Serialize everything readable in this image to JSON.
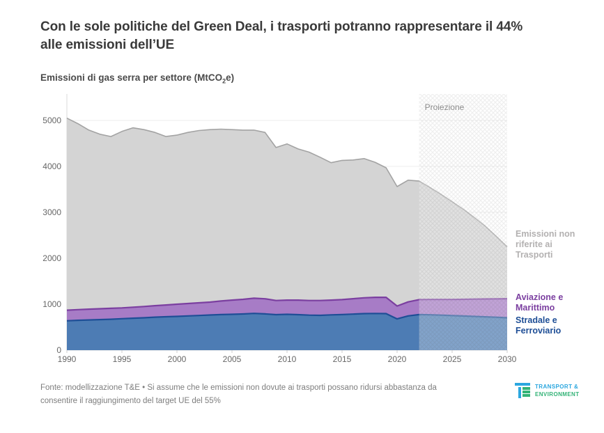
{
  "header": {
    "title_line1": "Con le sole politiche del Green Deal, i trasporti potranno rappresentare il 44%",
    "title_line2": "alle emissioni dell’UE",
    "subtitle_prefix": "Emissioni di gas serra per settore (MtCO",
    "subtitle_sub": "2",
    "subtitle_suffix": "e)"
  },
  "chart_data": {
    "type": "area",
    "stacked": true,
    "grid": true,
    "legend_position": "right",
    "xlim": [
      1990,
      2030
    ],
    "ylim": [
      0,
      5576
    ],
    "years": [
      1990,
      1991,
      1992,
      1993,
      1994,
      1995,
      1996,
      1997,
      1998,
      1999,
      2000,
      2001,
      2002,
      2003,
      2004,
      2005,
      2006,
      2007,
      2008,
      2009,
      2010,
      2011,
      2012,
      2013,
      2014,
      2015,
      2016,
      2017,
      2018,
      2019,
      2020,
      2021,
      2022,
      2023,
      2024,
      2025,
      2026,
      2027,
      2028,
      2029,
      2030
    ],
    "x_ticks": [
      1990,
      1995,
      2000,
      2005,
      2010,
      2015,
      2020,
      2025,
      2030
    ],
    "y_ticks": [
      0,
      1000,
      2000,
      3000,
      4000,
      5000
    ],
    "projection": {
      "label": "Proiezione",
      "start_year": 2022
    },
    "series": [
      {
        "name": "Stradale e Ferroviario",
        "fill": "#4d7cb4",
        "stroke": "#1e4e96",
        "stroke_width": 2.2,
        "label_color": "#1e4e96",
        "values": [
          640,
          650,
          658,
          665,
          672,
          685,
          695,
          705,
          718,
          728,
          735,
          745,
          755,
          765,
          775,
          780,
          788,
          800,
          790,
          772,
          780,
          772,
          762,
          758,
          768,
          775,
          785,
          795,
          798,
          795,
          680,
          745,
          775,
          770,
          762,
          753,
          744,
          735,
          726,
          716,
          705
        ]
      },
      {
        "name": "Aviazione e Marittimo",
        "fill": "#a77cc6",
        "stroke": "#7b3fa0",
        "stroke_width": 2.2,
        "label_color": "#7b3fa0",
        "values": [
          230,
          232,
          234,
          236,
          238,
          235,
          240,
          245,
          250,
          255,
          265,
          270,
          275,
          280,
          295,
          310,
          318,
          330,
          328,
          308,
          310,
          318,
          318,
          322,
          322,
          325,
          335,
          345,
          352,
          355,
          280,
          305,
          325,
          333,
          341,
          350,
          362,
          375,
          388,
          400,
          415
        ]
      },
      {
        "name": "Emissioni non riferite ai Trasporti",
        "fill": "#d4d4d4",
        "stroke": "#a3a3a3",
        "stroke_width": 1.6,
        "label_color": "#b3b1b1",
        "values": [
          4180,
          4048,
          3898,
          3799,
          3740,
          3840,
          3905,
          3850,
          3772,
          3667,
          3680,
          3725,
          3750,
          3755,
          3740,
          3710,
          3684,
          3660,
          3622,
          3330,
          3400,
          3290,
          3230,
          3120,
          2990,
          3030,
          3020,
          3030,
          2940,
          2820,
          2600,
          2650,
          2580,
          2437,
          2287,
          2127,
          1964,
          1780,
          1586,
          1364,
          1130
        ]
      }
    ]
  },
  "footer": {
    "line1": "Fonte: modellizzazione T&E • Si assume che le emissioni non dovute ai trasporti possano ridursi abbastanza da",
    "line2": "consentire il raggiungimento del target UE del 55%"
  },
  "logo": {
    "line1": "TRANSPORT &",
    "line2": "ENVIRONMENT"
  },
  "colors": {
    "axis_text": "#666666",
    "grid": "#ececec",
    "axis_line": "#d9d9d9",
    "tick": "#cccccc",
    "projection_label": "#8c8c8c",
    "logo_blue": "#2ba7df",
    "logo_green": "#33b377"
  }
}
